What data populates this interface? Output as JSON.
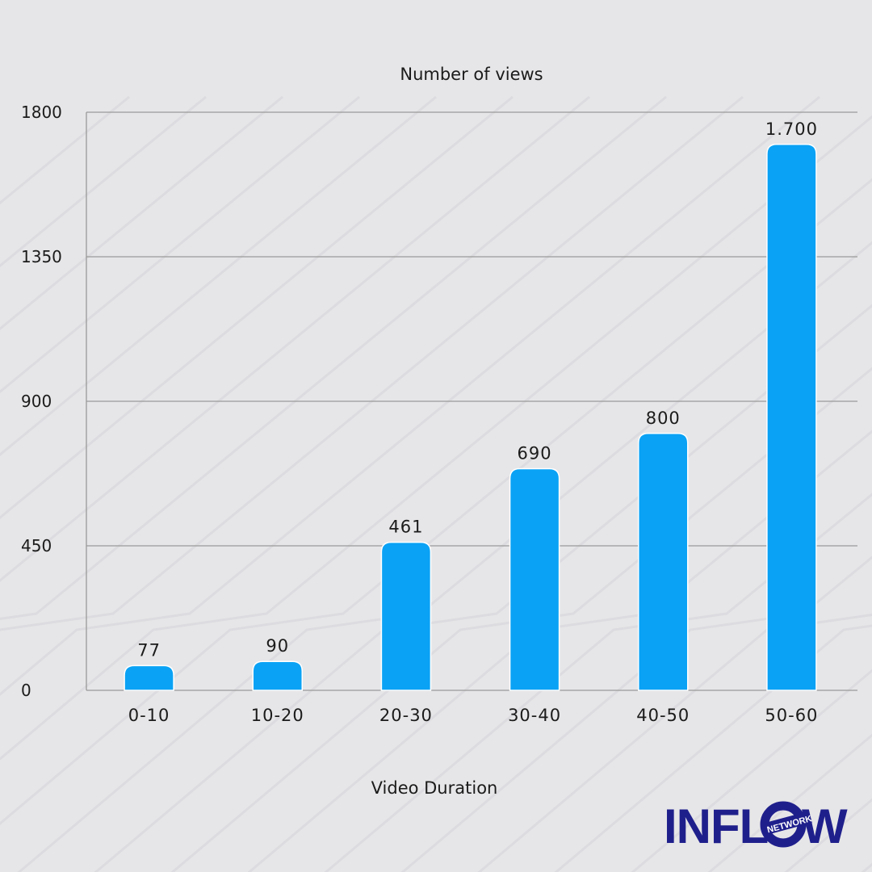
{
  "chart_data": {
    "type": "bar",
    "title": "Number of views",
    "xlabel": "Video Duration",
    "ylabel": "",
    "categories": [
      "0-10",
      "10-20",
      "20-30",
      "30-40",
      "40-50",
      "50-60"
    ],
    "values": [
      77,
      90,
      461,
      690,
      800,
      1700
    ],
    "value_labels": [
      "77",
      "90",
      "461",
      "690",
      "800",
      "1.700"
    ],
    "yticks": [
      0,
      450,
      900,
      1350,
      1800
    ],
    "ylim": [
      0,
      1800
    ],
    "grid": true,
    "bar_color": "#0aa2f5"
  },
  "branding": {
    "logo_text": "INFLOW NETWORK",
    "logo_color": "#1f1f8c"
  }
}
